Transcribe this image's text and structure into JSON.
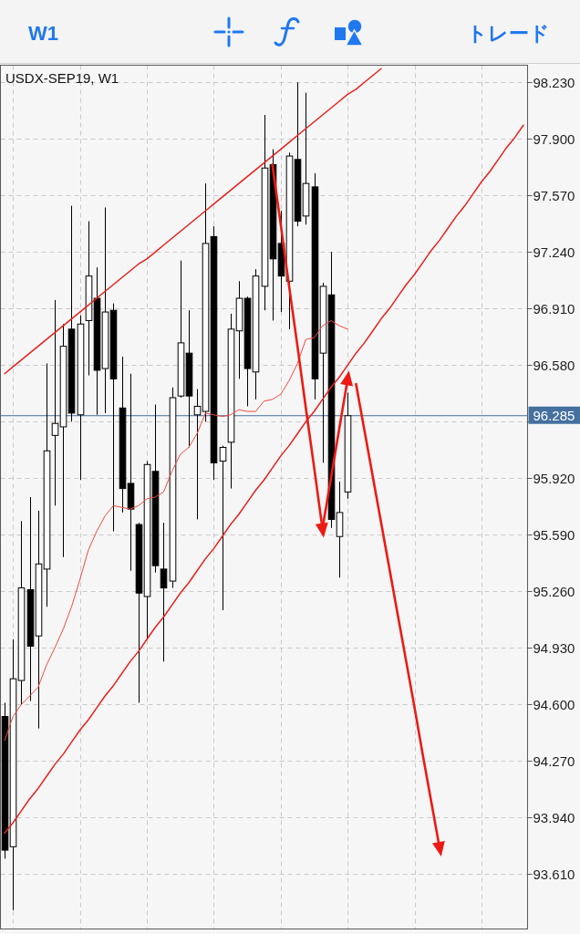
{
  "chart_data": {
    "type": "candlestick",
    "title": "USDX-SEP19, W1",
    "annotations": [
      "W1",
      "トレード"
    ],
    "categories": [
      null,
      null,
      null,
      null,
      null,
      null,
      null,
      null,
      null,
      null,
      null,
      null,
      null,
      null,
      null,
      null,
      null,
      null,
      null,
      null,
      null,
      null,
      null,
      null,
      null,
      null,
      null,
      null,
      null,
      null,
      null,
      null,
      null,
      null,
      null,
      null,
      null,
      null,
      null,
      null,
      null,
      null,
      null,
      null,
      null,
      null,
      null,
      null,
      null,
      null,
      null,
      null,
      null,
      null,
      null,
      null,
      null,
      null,
      null,
      null,
      null,
      null,
      null
    ],
    "ohlc": [
      [
        94.53,
        94.61,
        93.7,
        93.75
      ],
      [
        93.77,
        94.98,
        93.4,
        94.75
      ],
      [
        94.74,
        95.67,
        94.6,
        95.28
      ],
      [
        95.27,
        95.81,
        94.62,
        94.94
      ],
      [
        95.0,
        95.73,
        94.46,
        95.42
      ],
      [
        95.39,
        96.59,
        95.17,
        96.08
      ],
      [
        96.17,
        96.96,
        95.76,
        96.24
      ],
      [
        96.22,
        96.82,
        95.46,
        96.69
      ],
      [
        96.79,
        97.51,
        96.25,
        96.3
      ],
      [
        96.29,
        96.87,
        95.91,
        96.82
      ],
      [
        96.84,
        97.42,
        96.52,
        97.1
      ],
      [
        96.97,
        97.15,
        96.29,
        96.55
      ],
      [
        96.56,
        97.5,
        96.3,
        96.89
      ],
      [
        96.9,
        96.94,
        95.61,
        96.5
      ],
      [
        96.33,
        96.63,
        95.72,
        95.86
      ],
      [
        95.89,
        96.53,
        95.38,
        95.74
      ],
      [
        95.65,
        95.66,
        94.61,
        95.25
      ],
      [
        95.23,
        96.02,
        94.98,
        96.0
      ],
      [
        95.96,
        96.35,
        95.37,
        95.41
      ],
      [
        95.39,
        95.66,
        94.85,
        95.28
      ],
      [
        95.32,
        96.45,
        95.28,
        96.39
      ],
      [
        96.4,
        97.19,
        96.39,
        96.71
      ],
      [
        96.65,
        96.9,
        96.1,
        96.4
      ],
      [
        96.29,
        96.44,
        95.68,
        96.34
      ],
      [
        96.31,
        97.64,
        96.25,
        97.29
      ],
      [
        97.33,
        97.39,
        95.91,
        96.01
      ],
      [
        96.02,
        96.11,
        95.15,
        96.1
      ],
      [
        96.13,
        96.88,
        95.86,
        96.79
      ],
      [
        96.78,
        97.07,
        96.5,
        96.97
      ],
      [
        96.97,
        96.98,
        96.34,
        96.56
      ],
      [
        96.54,
        97.14,
        96.38,
        97.1
      ],
      [
        97.04,
        98.04,
        96.9,
        97.73
      ],
      [
        97.75,
        97.84,
        96.84,
        97.2
      ],
      [
        97.29,
        97.48,
        96.89,
        97.1
      ],
      [
        97.07,
        97.82,
        96.79,
        97.8
      ],
      [
        97.78,
        98.23,
        97.39,
        97.42
      ],
      [
        97.45,
        98.17,
        97.4,
        97.64
      ],
      [
        97.62,
        97.7,
        96.38,
        96.5
      ],
      [
        96.65,
        97.06,
        96.01,
        97.04
      ],
      [
        96.99,
        97.24,
        95.63,
        95.68
      ],
      [
        95.58,
        95.9,
        95.34,
        95.72
      ],
      [
        95.84,
        96.42,
        95.8,
        96.285
      ],
      null,
      null,
      null,
      null,
      null,
      null,
      null,
      null,
      null,
      null,
      null,
      null,
      null,
      null,
      null,
      null,
      null,
      null,
      null,
      null,
      null
    ],
    "series": [
      {
        "type": "line",
        "color": "#f04a40",
        "values": [
          94.39,
          94.53,
          94.6,
          94.65,
          94.7,
          94.83,
          94.93,
          95.04,
          95.17,
          95.33,
          95.5,
          95.61,
          95.7,
          95.76,
          95.75,
          95.74,
          95.76,
          95.8,
          95.81,
          95.84,
          95.96,
          96.06,
          96.1,
          96.18,
          96.3,
          96.29,
          96.28,
          96.29,
          96.32,
          96.31,
          96.31,
          96.37,
          96.38,
          96.41,
          96.49,
          96.59,
          96.73,
          96.74,
          96.81,
          96.84,
          96.81,
          96.79,
          null,
          null,
          null,
          null,
          null,
          null,
          null,
          null,
          null,
          null,
          null,
          null,
          null,
          null,
          null,
          null,
          null,
          null,
          null,
          null,
          null
        ]
      },
      {
        "type": "line",
        "color": "#e8201c",
        "values": [
          96.53,
          96.57,
          96.61,
          96.65,
          96.69,
          96.73,
          96.77,
          96.81,
          96.85,
          96.89,
          96.93,
          96.97,
          97.01,
          97.05,
          97.09,
          97.13,
          97.17,
          97.2,
          97.24,
          97.28,
          97.32,
          97.36,
          97.4,
          97.44,
          97.48,
          97.52,
          97.56,
          97.6,
          97.64,
          97.68,
          97.72,
          97.76,
          97.8,
          97.84,
          97.88,
          97.92,
          97.96,
          98.0,
          98.04,
          98.08,
          98.12,
          98.16,
          98.19,
          98.23,
          98.27,
          98.31,
          null,
          null,
          null,
          null,
          null,
          null,
          null,
          null,
          null,
          null,
          null,
          null,
          null,
          null,
          null,
          null,
          null
        ]
      },
      {
        "type": "line",
        "color": "#e8201c",
        "values": [
          93.85,
          93.91,
          93.98,
          94.05,
          94.11,
          94.18,
          94.25,
          94.31,
          94.38,
          94.45,
          94.51,
          94.58,
          94.65,
          94.71,
          94.78,
          94.85,
          94.91,
          94.98,
          95.05,
          95.11,
          95.18,
          95.25,
          95.31,
          95.38,
          95.45,
          95.51,
          95.58,
          95.65,
          95.71,
          95.78,
          95.85,
          95.91,
          95.98,
          96.05,
          96.11,
          96.18,
          96.25,
          96.31,
          96.38,
          96.45,
          96.51,
          96.58,
          96.65,
          96.71,
          96.78,
          96.85,
          96.91,
          96.98,
          97.05,
          97.11,
          97.18,
          97.25,
          97.31,
          97.38,
          97.45,
          97.51,
          97.58,
          97.65,
          97.71,
          97.78,
          97.85,
          97.91,
          97.98
        ]
      },
      {
        "type": "line",
        "color": "#ec1a14",
        "values": [
          null,
          null,
          null,
          null,
          null,
          null,
          null,
          null,
          null,
          null,
          null,
          null,
          null,
          null,
          null,
          null,
          null,
          null,
          null,
          null,
          null,
          null,
          null,
          null,
          null,
          null,
          null,
          null,
          null,
          null,
          null,
          null,
          97.75,
          97.4,
          97.04,
          96.69,
          96.33,
          95.98,
          95.62,
          null,
          null,
          null,
          null,
          null,
          null,
          null,
          null,
          null,
          null,
          null,
          null,
          null,
          null,
          null,
          null,
          null,
          null,
          null,
          null,
          null,
          null,
          null,
          null
        ]
      },
      {
        "type": "line",
        "color": "#ec1a14",
        "values": [
          null,
          null,
          null,
          null,
          null,
          null,
          null,
          null,
          null,
          null,
          null,
          null,
          null,
          null,
          null,
          null,
          null,
          null,
          null,
          null,
          null,
          null,
          null,
          null,
          null,
          null,
          null,
          null,
          null,
          null,
          null,
          null,
          null,
          null,
          null,
          null,
          null,
          null,
          95.63,
          95.92,
          96.21,
          96.5,
          null,
          null,
          null,
          null,
          null,
          null,
          null,
          null,
          null,
          null,
          null,
          null,
          null,
          null,
          null,
          null,
          null,
          null,
          null,
          null,
          null
        ]
      },
      {
        "type": "line",
        "color": "#ec1a14",
        "values": [
          null,
          null,
          null,
          null,
          null,
          null,
          null,
          null,
          null,
          null,
          null,
          null,
          null,
          null,
          null,
          null,
          null,
          null,
          null,
          null,
          null,
          null,
          null,
          null,
          null,
          null,
          null,
          null,
          null,
          null,
          null,
          null,
          null,
          null,
          null,
          null,
          null,
          null,
          null,
          null,
          null,
          null,
          96.47,
          96.2,
          95.93,
          95.66,
          95.39,
          95.12,
          94.85,
          94.58,
          94.3,
          94.03,
          93.76,
          null,
          null,
          null,
          null,
          null,
          null,
          null,
          null,
          null,
          null
        ]
      },
      {
        "type": "scatter",
        "color": "#ec1a14",
        "marker": "triangle",
        "values": [
          null,
          null,
          null,
          null,
          null,
          null,
          null,
          null,
          null,
          null,
          null,
          null,
          null,
          null,
          null,
          null,
          null,
          null,
          null,
          null,
          null,
          null,
          null,
          null,
          null,
          null,
          null,
          null,
          null,
          null,
          null,
          null,
          null,
          null,
          null,
          null,
          null,
          null,
          95.62,
          null,
          null,
          96.5,
          null,
          null,
          null,
          null,
          null,
          null,
          null,
          null,
          null,
          null,
          93.76,
          null,
          null,
          null,
          null,
          null,
          null,
          null,
          null,
          null,
          null
        ]
      }
    ],
    "ylim": [
      93.29,
      98.33
    ],
    "yticks": [
      {
        "value": 98.23,
        "label": "98.230"
      },
      {
        "value": 97.9,
        "label": "97.900"
      },
      {
        "value": 97.57,
        "label": "97.570"
      },
      {
        "value": 97.24,
        "label": "97.240"
      },
      {
        "value": 96.91,
        "label": "96.910"
      },
      {
        "value": 96.58,
        "label": "96.580"
      },
      {
        "value": 96.25,
        "label": null
      },
      {
        "value": 95.92,
        "label": "95.920"
      },
      {
        "value": 95.59,
        "label": "95.590"
      },
      {
        "value": 95.26,
        "label": "95.260"
      },
      {
        "value": 94.93,
        "label": "94.930"
      },
      {
        "value": 94.6,
        "label": "94.600"
      },
      {
        "value": 94.27,
        "label": "94.270"
      },
      {
        "value": 93.94,
        "label": "93.940"
      },
      {
        "value": 93.61,
        "label": "93.610"
      }
    ],
    "grid": true,
    "tick_labels": "y",
    "ref_lines": [
      {
        "axis": "y",
        "value": 96.285,
        "label": "96.285",
        "color": "#45709f"
      }
    ]
  }
}
